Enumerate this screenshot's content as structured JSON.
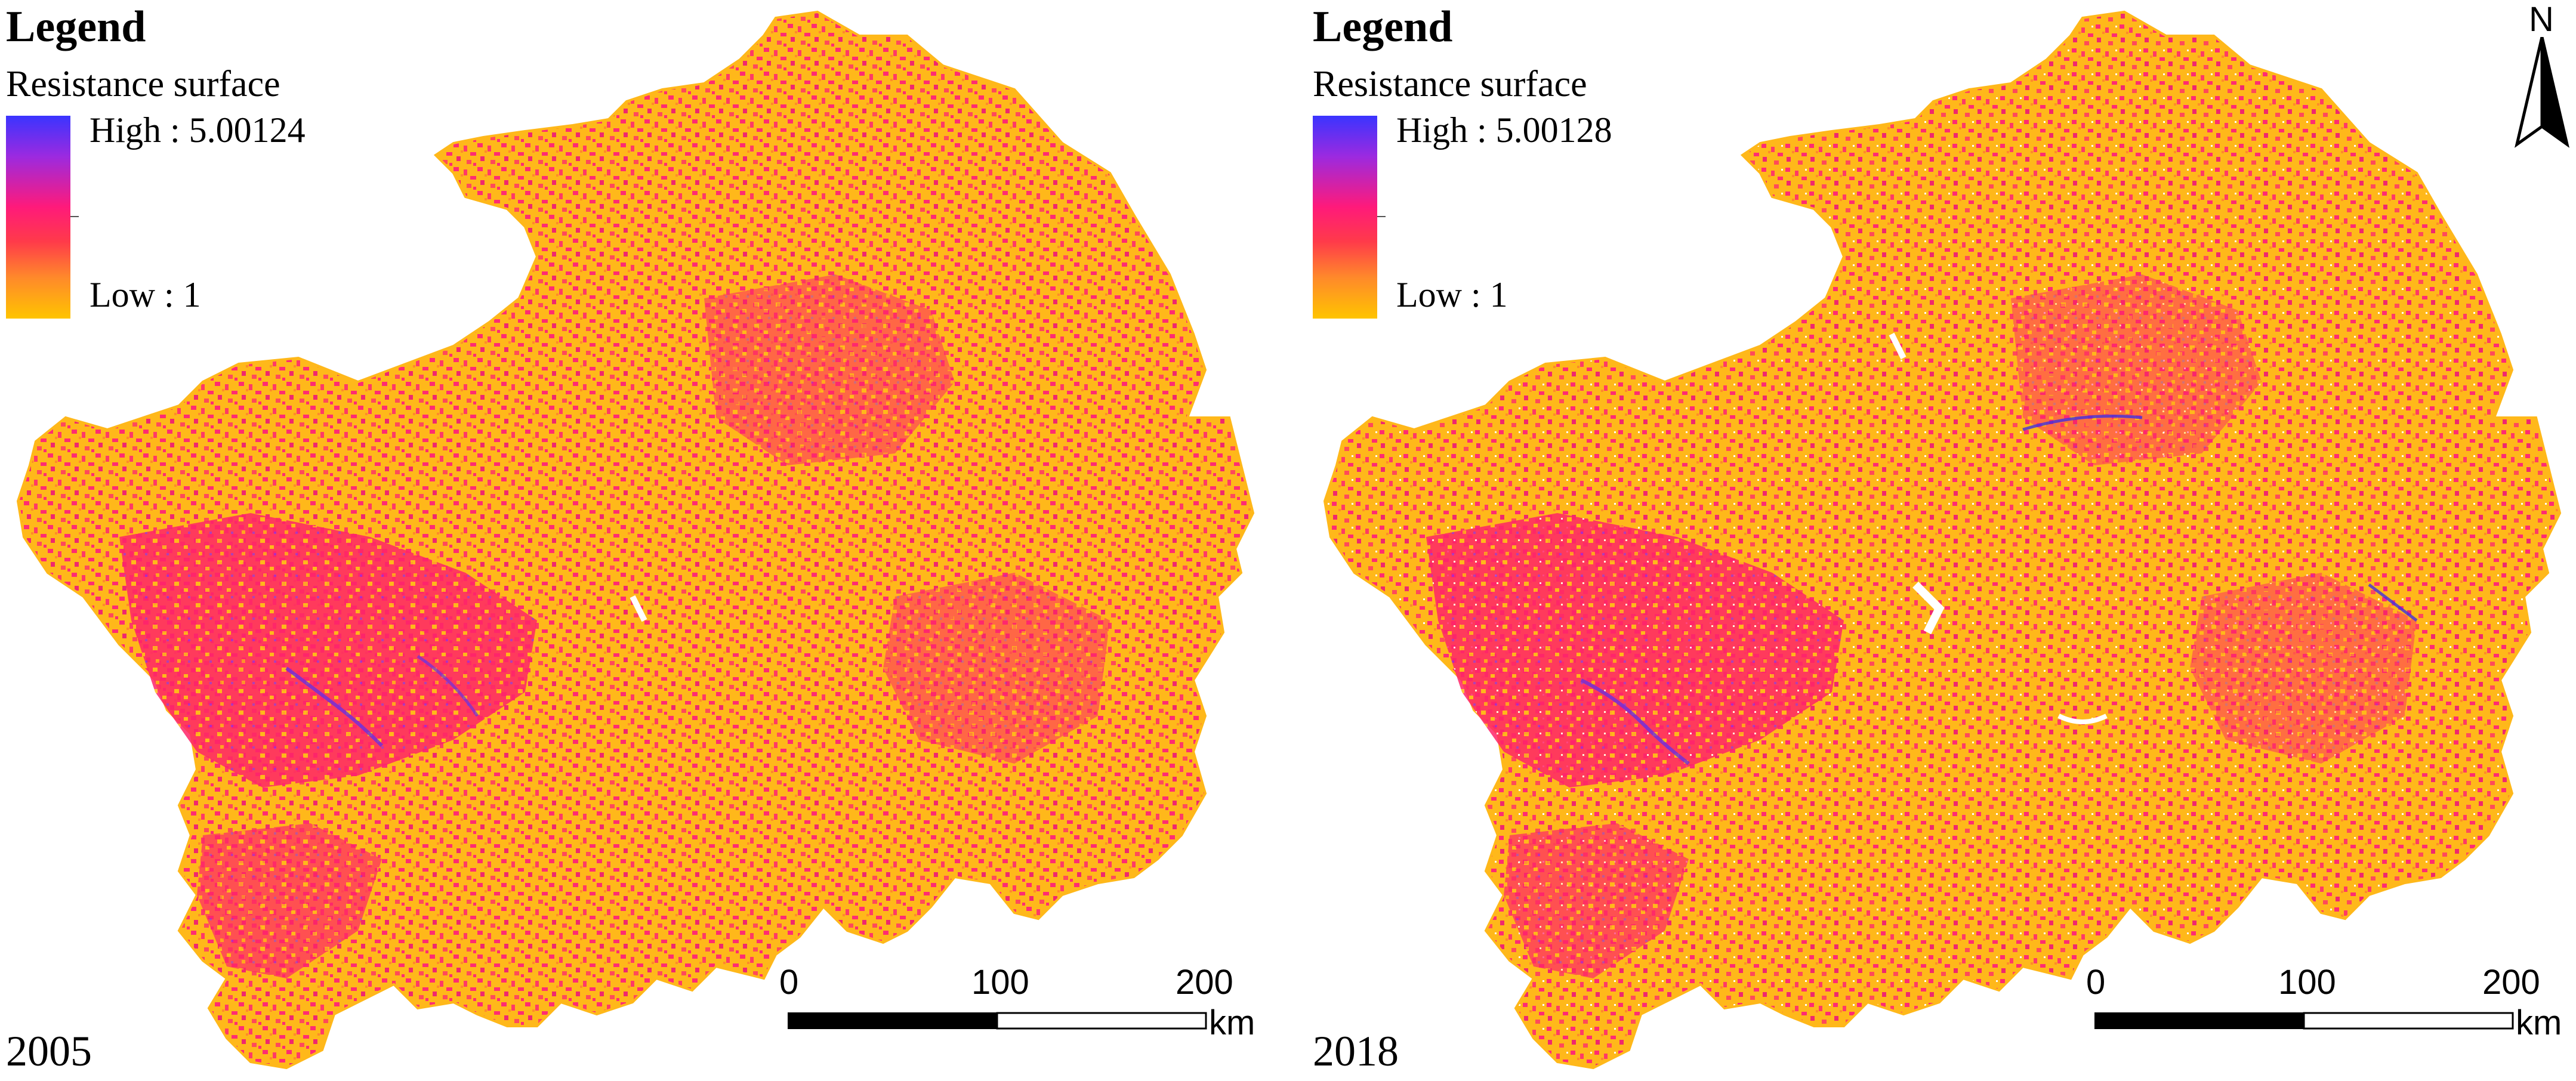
{
  "panels": [
    {
      "year": "2005",
      "legend": {
        "title": "Legend",
        "subtitle": "Resistance surface",
        "high_label": "High : 5.00124",
        "low_label": "Low : 1"
      },
      "scale": {
        "ticks": [
          "0",
          "100",
          "200"
        ],
        "unit": "km"
      }
    },
    {
      "year": "2018",
      "legend": {
        "title": "Legend",
        "subtitle": "Resistance surface",
        "high_label": "High : 5.00128",
        "low_label": "Low : 1"
      },
      "scale": {
        "ticks": [
          "0",
          "100",
          "200"
        ],
        "unit": "km"
      }
    }
  ],
  "north_arrow": {
    "label": "N"
  },
  "colors": {
    "high": "#3a34ff",
    "mid_high": "#9b2ae0",
    "mid": "#ff1a7a",
    "mid_low": "#ff8a2a",
    "low": "#ffc400"
  }
}
